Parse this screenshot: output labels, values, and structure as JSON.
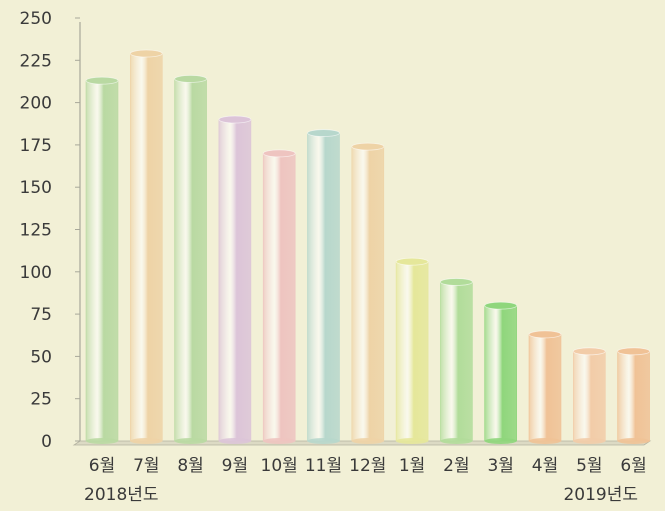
{
  "chart_data": {
    "type": "bar",
    "categories": [
      "6월",
      "7월",
      "8월",
      "9월",
      "10월",
      "11월",
      "12월",
      "1월",
      "2월",
      "3월",
      "4월",
      "5월",
      "6월"
    ],
    "values": [
      213,
      229,
      214,
      190,
      170,
      182,
      174,
      106,
      94,
      80,
      63,
      53,
      53
    ],
    "ylim": [
      0,
      250
    ],
    "yticks": [
      0,
      25,
      50,
      75,
      100,
      125,
      150,
      175,
      200,
      225,
      250
    ],
    "year_labels": [
      "2018년도",
      "2019년도"
    ],
    "grid": false,
    "bar_colors": [
      "#b9d9a2",
      "#eed3a6",
      "#b9d9a2",
      "#dcc4d8",
      "#eec4c0",
      "#b7d7cc",
      "#eed3a6",
      "#e5e79a",
      "#b1dc9a",
      "#8fd67c",
      "#f0c296",
      "#f2cca8",
      "#f0c296"
    ]
  }
}
